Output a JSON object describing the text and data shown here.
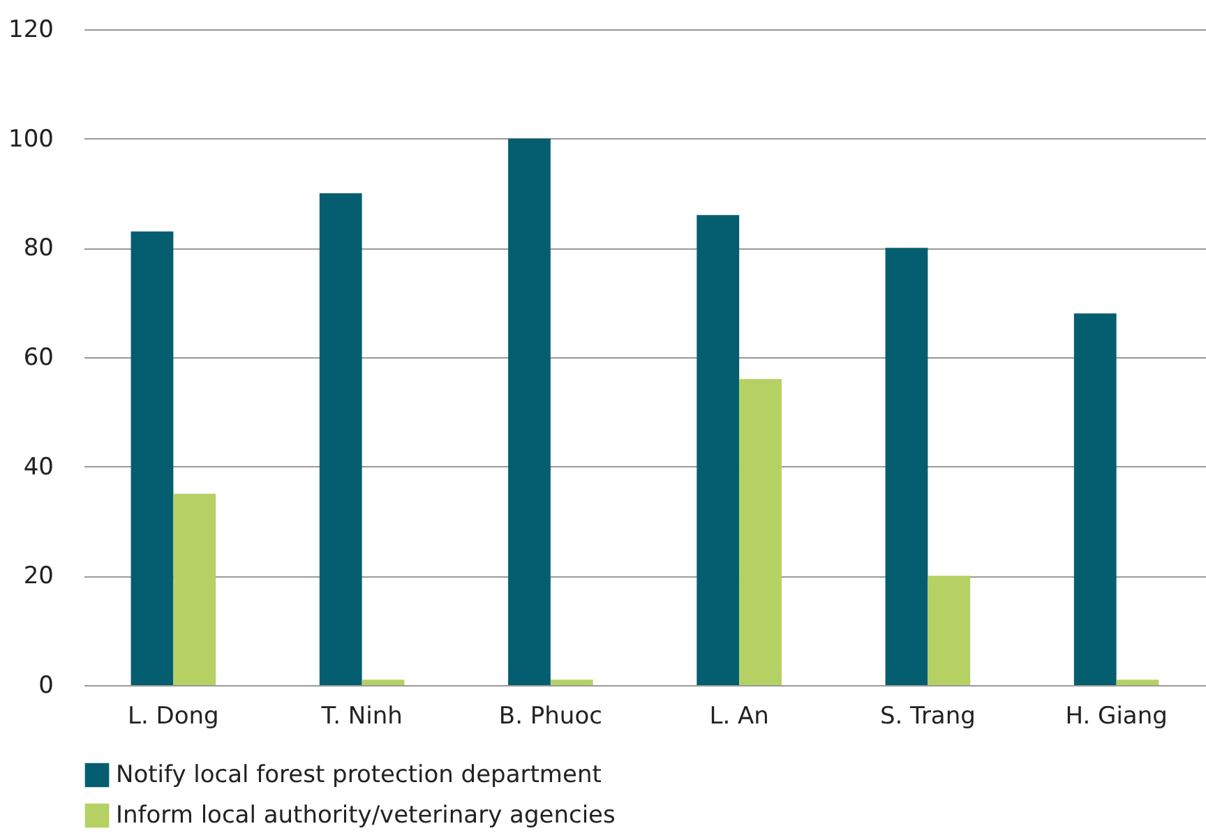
{
  "chart_data": {
    "type": "bar",
    "categories": [
      "L. Dong",
      "T. Ninh",
      "B. Phuoc",
      "L. An",
      "S. Trang",
      "H. Giang"
    ],
    "series": [
      {
        "name": "Notify local forest protection department",
        "color": "#045e70",
        "values": [
          83,
          90,
          100,
          86,
          80,
          68
        ]
      },
      {
        "name": "Inform local authority/veterinary agencies",
        "color": "#b5d164",
        "values": [
          35,
          1,
          1,
          56,
          20,
          1
        ]
      }
    ],
    "ylim": [
      0,
      120
    ],
    "yticks": [
      0,
      20,
      40,
      60,
      80,
      100,
      120
    ],
    "grid": "y",
    "legend": "bottom"
  }
}
